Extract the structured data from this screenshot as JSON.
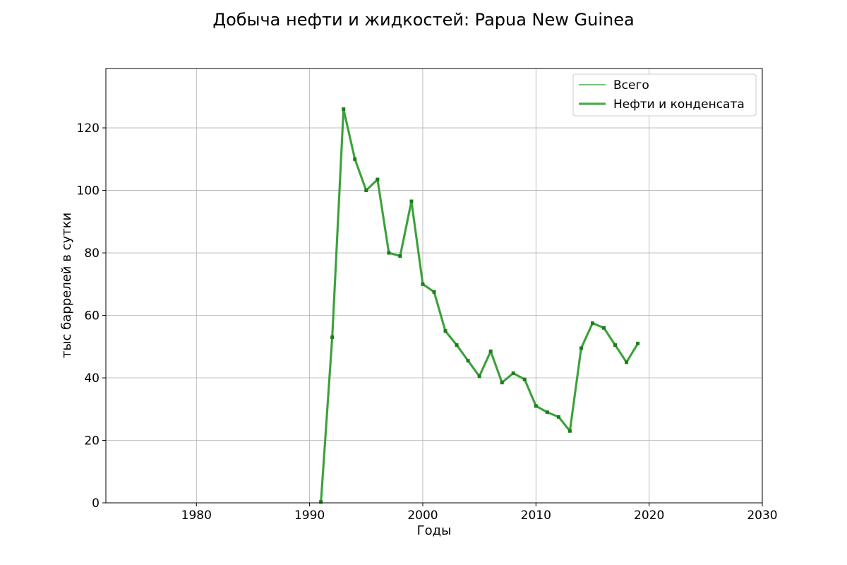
{
  "chart_data": {
    "type": "line",
    "title": "Добыча нефти и жидкостей: Papua New Guinea",
    "xlabel": "Годы",
    "ylabel": "тыс баррелей в сутки",
    "xlim": [
      1972,
      2030
    ],
    "ylim": [
      0,
      139
    ],
    "xticks": [
      1980,
      1990,
      2000,
      2010,
      2020,
      2030
    ],
    "yticks": [
      0,
      20,
      40,
      60,
      80,
      100,
      120
    ],
    "grid": true,
    "legend_position": "top-right",
    "colors": {
      "total": "#55b455",
      "oil": "#2e9a2e",
      "marker": "#1a7f1a"
    },
    "x": [
      1991,
      1992,
      1993,
      1994,
      1995,
      1996,
      1997,
      1998,
      1999,
      2000,
      2001,
      2002,
      2003,
      2004,
      2005,
      2006,
      2007,
      2008,
      2009,
      2010,
      2011,
      2012,
      2013,
      2014,
      2015,
      2016,
      2017,
      2018,
      2019
    ],
    "series": [
      {
        "name": "Всего",
        "values": [
          0.3,
          53,
          126,
          110,
          100,
          103.5,
          80,
          79,
          96.5,
          70,
          67.5,
          55,
          50.5,
          45.5,
          40.5,
          48.5,
          38.5,
          41.5,
          39.5,
          31,
          29,
          27.5,
          23,
          49.5,
          57.5,
          56,
          50.5,
          45,
          51
        ]
      },
      {
        "name": "Нефти и конденсата",
        "values": [
          0.3,
          53,
          126,
          110,
          100,
          103.5,
          80,
          79,
          96.5,
          70,
          67.5,
          55,
          50.5,
          45.5,
          40.5,
          48.5,
          38.5,
          41.5,
          39.5,
          31,
          29,
          27.5,
          23,
          49.5,
          57.5,
          56,
          50.5,
          45,
          51
        ]
      }
    ]
  }
}
